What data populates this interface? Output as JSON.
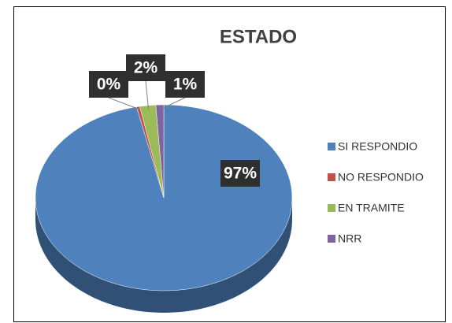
{
  "chart_data": {
    "type": "pie",
    "title": "ESTADO",
    "categories": [
      "SI RESPONDIO",
      "NO RESPONDIO",
      "EN TRAMITE",
      "NRR"
    ],
    "values": [
      96.6,
      0.4,
      2,
      1
    ],
    "value_labels": [
      "97%",
      "0%",
      "2%",
      "1%"
    ],
    "colors": [
      "#4f81bd",
      "#c0504d",
      "#9bbb59",
      "#8064a2"
    ],
    "legend": "right"
  }
}
